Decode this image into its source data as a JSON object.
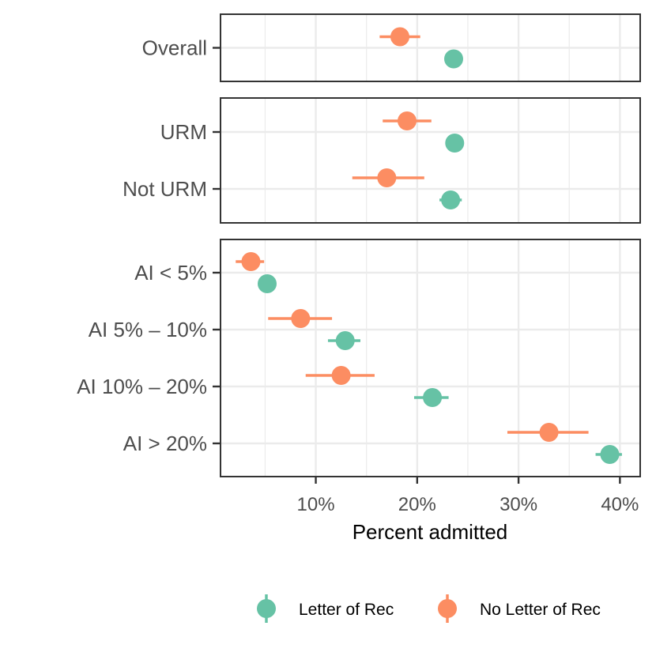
{
  "chart_data": {
    "type": "dot-errorbar",
    "xlabel": "Percent admitted",
    "x_ticks": [
      "10%",
      "20%",
      "30%",
      "40%"
    ],
    "x_tick_values": [
      10,
      20,
      30,
      40
    ],
    "xlim": [
      0.6,
      42.0
    ],
    "grid": true,
    "legend_position": "bottom",
    "series": [
      {
        "name": "Letter of Rec",
        "color": "#66c2a5"
      },
      {
        "name": "No Letter of Rec",
        "color": "#fc8d62"
      }
    ],
    "panels": [
      {
        "categories": [
          "Overall"
        ],
        "points": [
          {
            "category": "Overall",
            "series": "No Letter of Rec",
            "value": 18.3,
            "low": 16.3,
            "high": 20.3
          },
          {
            "category": "Overall",
            "series": "Letter of Rec",
            "value": 23.6,
            "low": 23.6,
            "high": 23.6
          }
        ]
      },
      {
        "categories": [
          "URM",
          "Not URM"
        ],
        "points": [
          {
            "category": "URM",
            "series": "No Letter of Rec",
            "value": 19.0,
            "low": 16.6,
            "high": 21.4
          },
          {
            "category": "URM",
            "series": "Letter of Rec",
            "value": 23.7,
            "low": 23.7,
            "high": 23.7
          },
          {
            "category": "Not URM",
            "series": "No Letter of Rec",
            "value": 17.0,
            "low": 13.6,
            "high": 20.7
          },
          {
            "category": "Not URM",
            "series": "Letter of Rec",
            "value": 23.3,
            "low": 22.2,
            "high": 24.4
          }
        ]
      },
      {
        "categories": [
          "AI < 5%",
          "AI 5% – 10%",
          "AI 10% – 20%",
          "AI > 20%"
        ],
        "points": [
          {
            "category": "AI < 5%",
            "series": "No Letter of Rec",
            "value": 3.6,
            "low": 2.1,
            "high": 4.9
          },
          {
            "category": "AI < 5%",
            "series": "Letter of Rec",
            "value": 5.2,
            "low": 5.2,
            "high": 5.2
          },
          {
            "category": "AI 5% – 10%",
            "series": "No Letter of Rec",
            "value": 8.5,
            "low": 5.3,
            "high": 11.6
          },
          {
            "category": "AI 5% – 10%",
            "series": "Letter of Rec",
            "value": 12.9,
            "low": 11.2,
            "high": 14.4
          },
          {
            "category": "AI 10% – 20%",
            "series": "No Letter of Rec",
            "value": 12.5,
            "low": 9.0,
            "high": 15.8
          },
          {
            "category": "AI 10% – 20%",
            "series": "Letter of Rec",
            "value": 21.5,
            "low": 19.7,
            "high": 23.1
          },
          {
            "category": "AI > 20%",
            "series": "No Letter of Rec",
            "value": 33.0,
            "low": 28.9,
            "high": 36.9
          },
          {
            "category": "AI > 20%",
            "series": "Letter of Rec",
            "value": 39.0,
            "low": 37.6,
            "high": 40.2
          }
        ]
      }
    ]
  }
}
